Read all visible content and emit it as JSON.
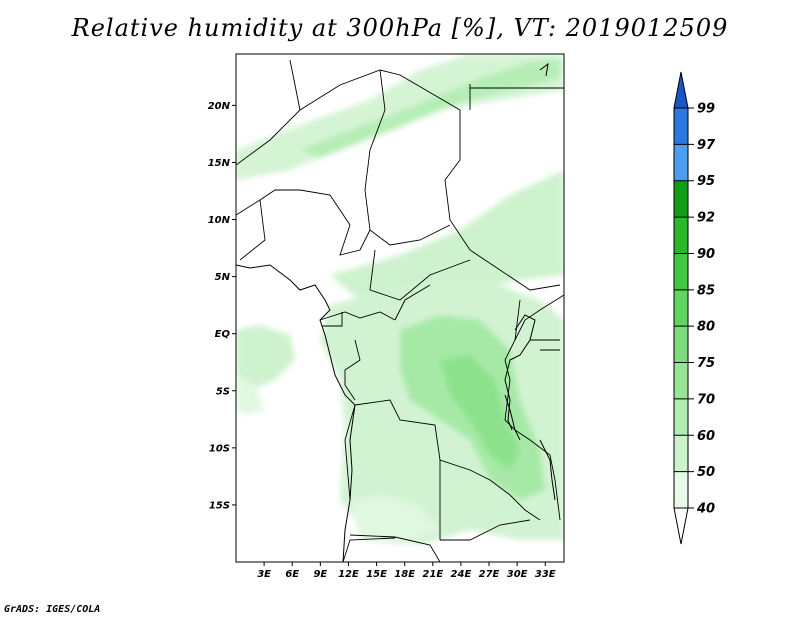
{
  "title": "Relative humidity at 300hPa [%], VT: 2019012509",
  "credit": "GrADS: IGES/COLA",
  "map": {
    "lon_range": [
      0,
      35
    ],
    "lat_range": [
      -20,
      24.5
    ],
    "lon_ticks": [
      "3E",
      "6E",
      "9E",
      "12E",
      "15E",
      "18E",
      "21E",
      "24E",
      "27E",
      "30E",
      "33E"
    ],
    "lat_ticks": [
      "20N",
      "15N",
      "10N",
      "5N",
      "EQ",
      "5S",
      "10S",
      "15S"
    ]
  },
  "colorbar": {
    "levels": [
      "40",
      "50",
      "60",
      "70",
      "75",
      "80",
      "85",
      "90",
      "92",
      "95",
      "97",
      "99"
    ],
    "colors": [
      "#ffffff",
      "#e8fae8",
      "#cdf3cd",
      "#b2ecb2",
      "#96e596",
      "#7bdd7b",
      "#5fd45f",
      "#40c840",
      "#28b828",
      "#129e12",
      "#4d9eee",
      "#2a7ade",
      "#1a56c8"
    ]
  }
}
